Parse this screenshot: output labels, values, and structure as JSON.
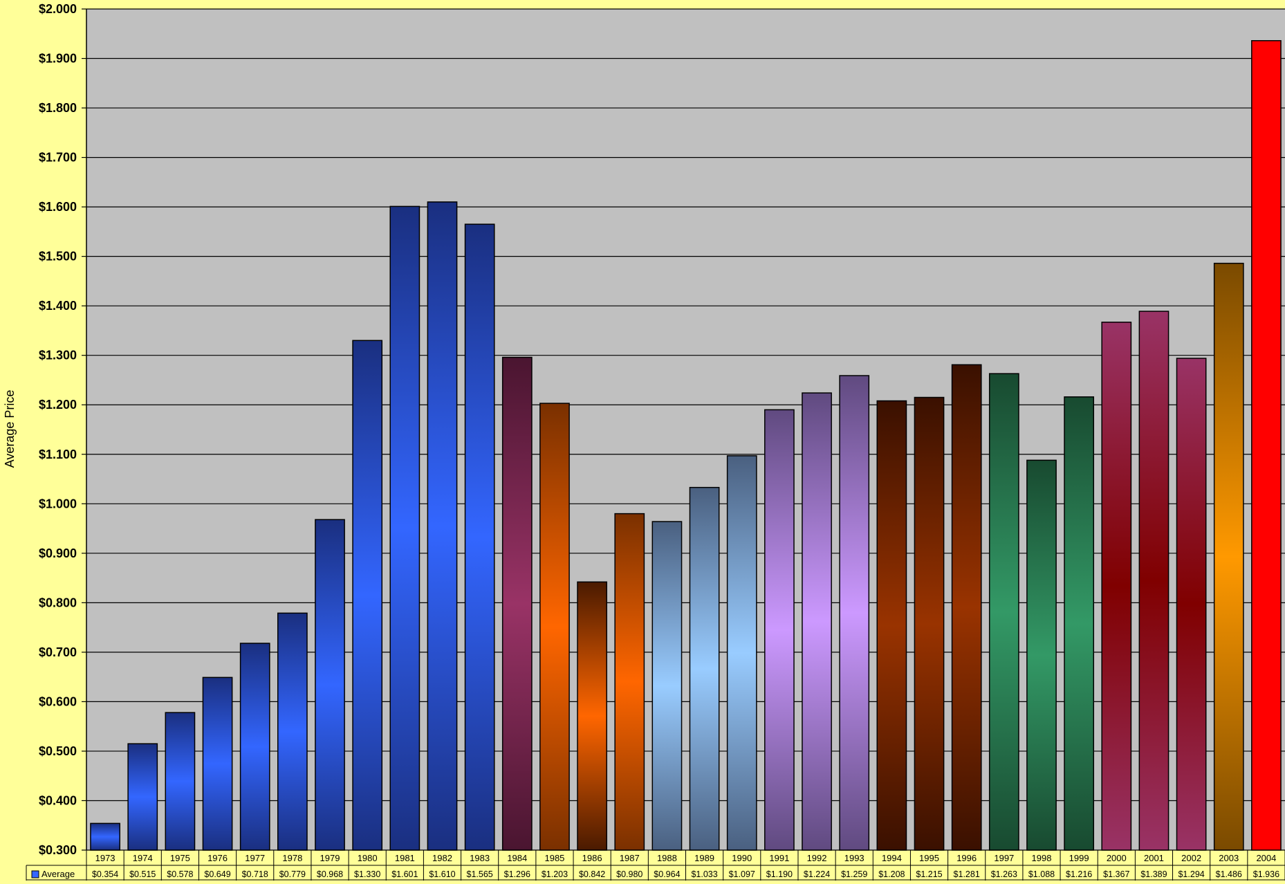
{
  "chart_data": {
    "type": "bar",
    "title": "",
    "xlabel": "",
    "ylabel": "Average Price",
    "ylim": [
      0.3,
      2.0
    ],
    "y_ticks": [
      "$0.300",
      "$0.400",
      "$0.500",
      "$0.600",
      "$0.700",
      "$0.800",
      "$0.900",
      "$1.000",
      "$1.100",
      "$1.200",
      "$1.300",
      "$1.400",
      "$1.500",
      "$1.600",
      "$1.700",
      "$1.800",
      "$1.900",
      "$2.000"
    ],
    "grid": true,
    "legend_placement": "data-table",
    "categories": [
      "1973",
      "1974",
      "1975",
      "1976",
      "1977",
      "1978",
      "1979",
      "1980",
      "1981",
      "1982",
      "1983",
      "1984",
      "1985",
      "1986",
      "1987",
      "1988",
      "1989",
      "1990",
      "1991",
      "1992",
      "1993",
      "1994",
      "1995",
      "1996",
      "1997",
      "1998",
      "1999",
      "2000",
      "2001",
      "2002",
      "2003",
      "2004"
    ],
    "series": [
      {
        "name": "Average",
        "values": [
          0.354,
          0.515,
          0.578,
          0.649,
          0.718,
          0.779,
          0.968,
          1.33,
          1.601,
          1.61,
          1.565,
          1.296,
          1.203,
          0.842,
          0.98,
          0.964,
          1.033,
          1.097,
          1.19,
          1.224,
          1.259,
          1.208,
          1.215,
          1.281,
          1.263,
          1.088,
          1.216,
          1.367,
          1.389,
          1.294,
          1.486,
          1.936
        ]
      }
    ],
    "table_values": [
      "$0.354",
      "$0.515",
      "$0.578",
      "$0.649",
      "$0.718",
      "$0.779",
      "$0.968",
      "$1.330",
      "$1.601",
      "$1.610",
      "$1.565",
      "$1.296",
      "$1.203",
      "$0.842",
      "$0.980",
      "$0.964",
      "$1.033",
      "$1.097",
      "$1.190",
      "$1.224",
      "$1.259",
      "$1.208",
      "$1.215",
      "$1.281",
      "$1.263",
      "$1.088",
      "$1.216",
      "$1.367",
      "$1.389",
      "$1.294",
      "$1.486",
      "$1.936"
    ],
    "bar_colors": [
      "#3366ff",
      "#3366ff",
      "#3366ff",
      "#3366ff",
      "#3366ff",
      "#3366ff",
      "#3366ff",
      "#3366ff",
      "#3366ff",
      "#3366ff",
      "#3366ff",
      "#993366",
      "#ff6600",
      "#ff6600",
      "#ff6600",
      "#99ccff",
      "#99ccff",
      "#99ccff",
      "#cc99ff",
      "#cc99ff",
      "#cc99ff",
      "#993300",
      "#993300",
      "#993300",
      "#339966",
      "#339966",
      "#339966",
      "#800000",
      "#800000",
      "#800000",
      "#ff9900",
      "#ff0000"
    ],
    "bar_edge_colors": [
      "#1a2f80",
      "#1a2f80",
      "#1a2f80",
      "#1a2f80",
      "#1a2f80",
      "#1a2f80",
      "#1a2f80",
      "#1a2f80",
      "#1a2f80",
      "#1a2f80",
      "#1a2f80",
      "#4a1530",
      "#7a3000",
      "#4a1a00",
      "#7a3000",
      "#4a6080",
      "#4a6080",
      "#4a6080",
      "#604a80",
      "#604a80",
      "#604a80",
      "#3a1000",
      "#3a1000",
      "#3a1000",
      "#184a30",
      "#184a30",
      "#184a30",
      "#993366",
      "#993366",
      "#993366",
      "#7a4a00",
      "#ff0000"
    ],
    "plot_background": "#c0c0c0",
    "page_background": "#ffff99"
  }
}
